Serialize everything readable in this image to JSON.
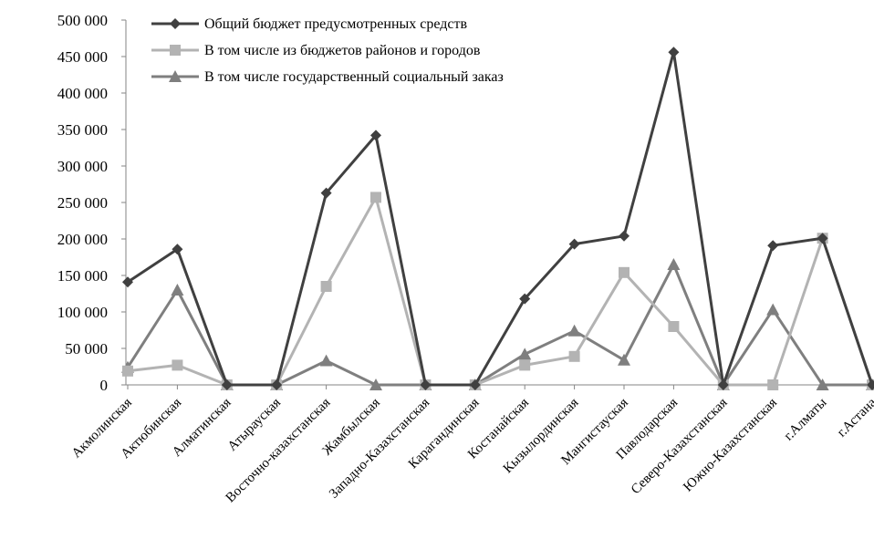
{
  "chart_data": {
    "type": "line",
    "categories": [
      "Акмолинская",
      "Актюбинская",
      "Алматинская",
      "Атырауская",
      "Восточно-казахстанская",
      "Жамбылская",
      "Западно-Казахстанская",
      "Карагандинская",
      "Костанайская",
      "Кызылординская",
      "Мангистауская",
      "Павлодарская",
      "Северо-Казахстанская",
      "Южно-Казахстанская",
      "г.Алматы",
      "г.Астана"
    ],
    "series": [
      {
        "name": "Общий бюджет предусмотренных средств",
        "color": "#404040",
        "marker": "diamond",
        "values": [
          141000,
          186000,
          0,
          0,
          263000,
          342000,
          0,
          0,
          118000,
          193000,
          204000,
          456000,
          0,
          191000,
          201000,
          0
        ]
      },
      {
        "name": "В том числе из бюджетов районов и городов",
        "color": "#b3b3b3",
        "marker": "square",
        "values": [
          19000,
          27000,
          0,
          0,
          135000,
          257000,
          0,
          0,
          27000,
          39000,
          154000,
          80000,
          0,
          0,
          201000,
          0
        ]
      },
      {
        "name": "В том числе государственный социальный заказ",
        "color": "#7f7f7f",
        "marker": "triangle",
        "values": [
          24000,
          130000,
          0,
          0,
          33000,
          0,
          0,
          0,
          42000,
          74000,
          34000,
          165000,
          0,
          103000,
          0,
          0
        ]
      }
    ],
    "ylim": [
      0,
      500000
    ],
    "yticks": [
      0,
      50000,
      100000,
      150000,
      200000,
      250000,
      300000,
      350000,
      400000,
      450000,
      500000
    ],
    "ytick_labels": [
      "0",
      "50 000",
      "100 000",
      "150 000",
      "200 000",
      "250 000",
      "300 000",
      "350 000",
      "400 000",
      "450 000",
      "500 000"
    ],
    "grid": false,
    "legend": "top-center"
  }
}
